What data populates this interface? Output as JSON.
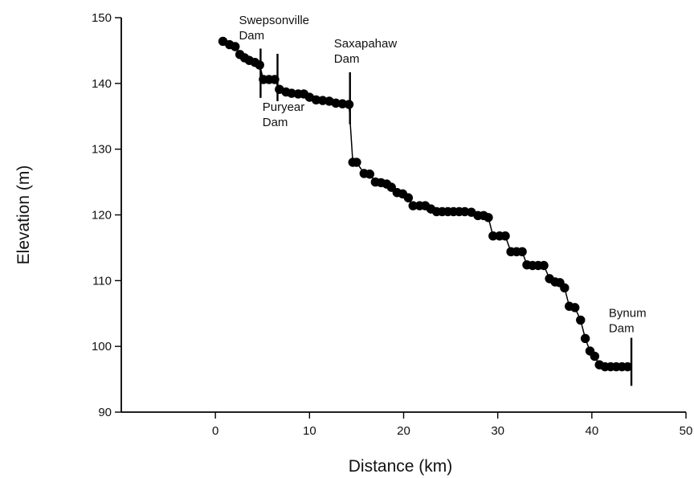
{
  "chart_data": {
    "type": "line",
    "title": "",
    "xlabel": "Distance (km)",
    "ylabel": "Elevation (m)",
    "xlim": [
      -10,
      50
    ],
    "ylim": [
      90,
      150
    ],
    "xticks": [
      0,
      10,
      20,
      30,
      40,
      50
    ],
    "yticks": [
      90,
      100,
      110,
      120,
      130,
      140,
      150
    ],
    "grid": false,
    "legend": "none",
    "colors": {
      "line": "#000000",
      "marker": "#000000",
      "axis": "#000000"
    },
    "series": [
      {
        "points": [
          [
            0.8,
            146.4
          ],
          [
            1.5,
            145.9
          ],
          [
            2.1,
            145.6
          ],
          [
            2.6,
            144.4
          ],
          [
            3.1,
            143.9
          ],
          [
            3.6,
            143.5
          ],
          [
            4.2,
            143.2
          ],
          [
            4.7,
            142.8
          ],
          [
            5.1,
            140.6
          ],
          [
            5.7,
            140.6
          ],
          [
            6.3,
            140.6
          ],
          [
            6.8,
            139.1
          ],
          [
            7.5,
            138.7
          ],
          [
            8.1,
            138.5
          ],
          [
            8.8,
            138.4
          ],
          [
            9.4,
            138.4
          ],
          [
            10.0,
            137.9
          ],
          [
            10.7,
            137.5
          ],
          [
            11.4,
            137.4
          ],
          [
            12.1,
            137.3
          ],
          [
            12.8,
            137.0
          ],
          [
            13.5,
            136.9
          ],
          [
            14.2,
            136.8
          ],
          [
            14.6,
            128.0
          ],
          [
            15.0,
            128.0
          ],
          [
            15.8,
            126.3
          ],
          [
            16.4,
            126.2
          ],
          [
            17.0,
            125.0
          ],
          [
            17.6,
            124.9
          ],
          [
            18.2,
            124.7
          ],
          [
            18.7,
            124.2
          ],
          [
            19.3,
            123.4
          ],
          [
            19.9,
            123.2
          ],
          [
            20.5,
            122.6
          ],
          [
            21.0,
            121.4
          ],
          [
            21.7,
            121.4
          ],
          [
            22.3,
            121.4
          ],
          [
            22.9,
            120.9
          ],
          [
            23.5,
            120.5
          ],
          [
            24.1,
            120.5
          ],
          [
            24.7,
            120.5
          ],
          [
            25.3,
            120.5
          ],
          [
            25.9,
            120.5
          ],
          [
            26.5,
            120.5
          ],
          [
            27.2,
            120.4
          ],
          [
            27.9,
            119.9
          ],
          [
            28.5,
            119.9
          ],
          [
            29.0,
            119.6
          ],
          [
            29.5,
            116.8
          ],
          [
            30.2,
            116.8
          ],
          [
            30.8,
            116.8
          ],
          [
            31.4,
            114.4
          ],
          [
            32.0,
            114.4
          ],
          [
            32.6,
            114.4
          ],
          [
            33.1,
            112.4
          ],
          [
            33.7,
            112.3
          ],
          [
            34.3,
            112.3
          ],
          [
            34.9,
            112.3
          ],
          [
            35.5,
            110.3
          ],
          [
            36.1,
            109.8
          ],
          [
            36.6,
            109.7
          ],
          [
            37.1,
            108.9
          ],
          [
            37.6,
            106.1
          ],
          [
            38.2,
            105.9
          ],
          [
            38.8,
            104.0
          ],
          [
            39.3,
            101.2
          ],
          [
            39.8,
            99.3
          ],
          [
            40.3,
            98.5
          ],
          [
            40.8,
            97.2
          ],
          [
            41.4,
            96.9
          ],
          [
            42.0,
            96.9
          ],
          [
            42.6,
            96.9
          ],
          [
            43.2,
            96.9
          ],
          [
            43.8,
            96.9
          ]
        ]
      }
    ],
    "annotations": [
      {
        "label_lines": [
          "Swepsonville",
          "Dam"
        ],
        "label_x": 2.5,
        "label_y": 149.0,
        "marker_x": 4.8,
        "marker_y_range": [
          137.8,
          145.3
        ]
      },
      {
        "label_lines": [
          "Puryear",
          "Dam"
        ],
        "label_x": 5.0,
        "label_y": 135.8,
        "marker_x": 6.6,
        "marker_y_range": [
          137.3,
          144.5
        ]
      },
      {
        "label_lines": [
          "Saxapahaw",
          "Dam"
        ],
        "label_x": 12.6,
        "label_y": 145.5,
        "marker_x": 14.3,
        "marker_y_range": [
          133.8,
          141.7
        ]
      },
      {
        "label_lines": [
          "Bynum",
          "Dam"
        ],
        "label_x": 41.8,
        "label_y": 104.5,
        "marker_x": 44.2,
        "marker_y_range": [
          94.0,
          101.3
        ]
      }
    ]
  }
}
